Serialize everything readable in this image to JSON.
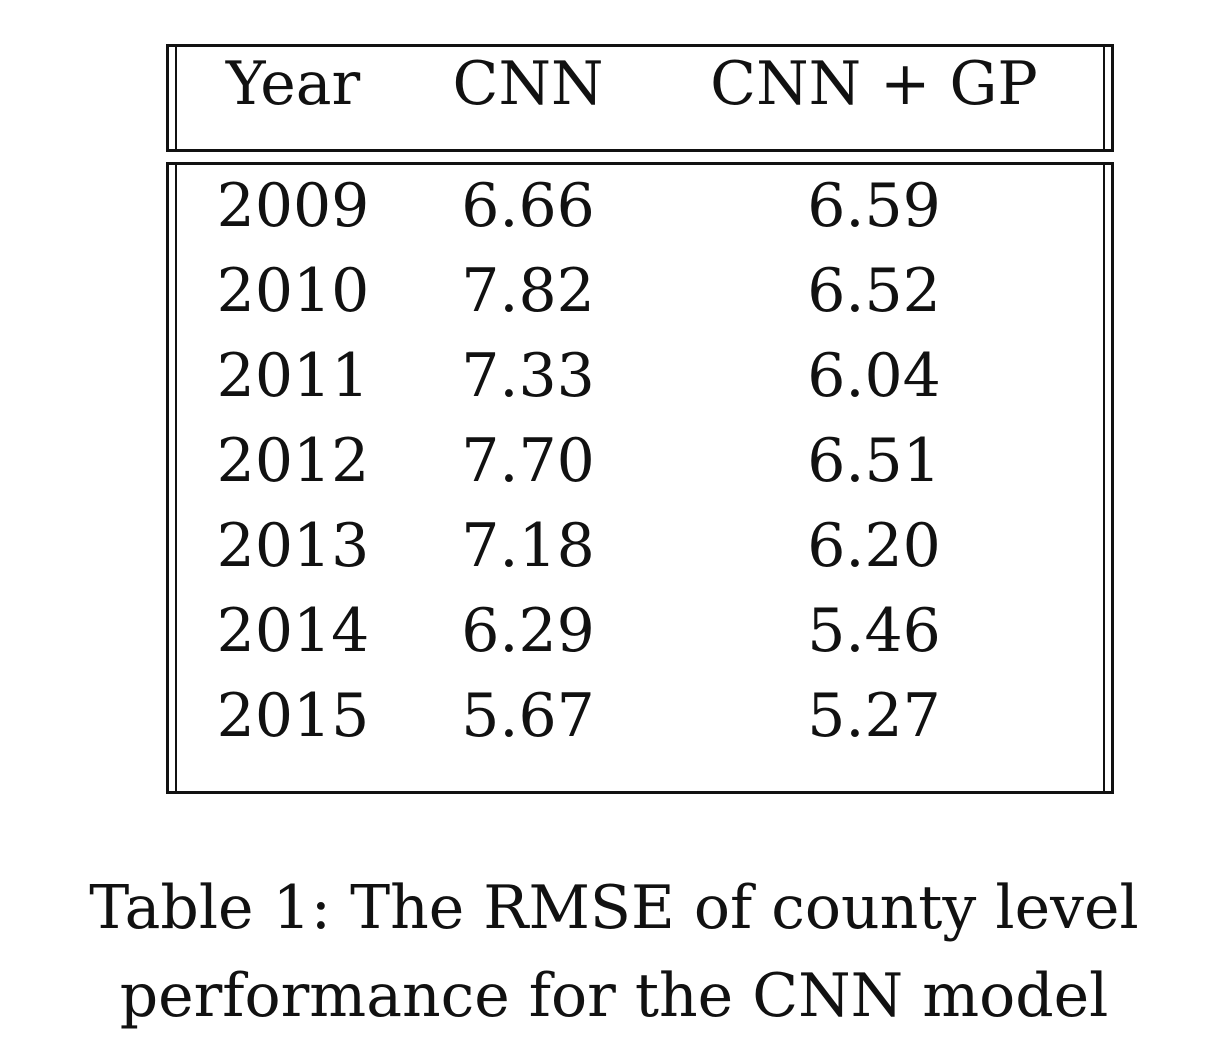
{
  "table": {
    "headers": [
      "Year",
      "CNN",
      "CNN + GP"
    ],
    "rows": [
      [
        "2009",
        "6.66",
        "6.59"
      ],
      [
        "2010",
        "7.82",
        "6.52"
      ],
      [
        "2011",
        "7.33",
        "6.04"
      ],
      [
        "2012",
        "7.70",
        "6.51"
      ],
      [
        "2013",
        "7.18",
        "6.20"
      ],
      [
        "2014",
        "6.29",
        "5.46"
      ],
      [
        "2015",
        "5.67",
        "5.27"
      ]
    ]
  },
  "caption": {
    "line1": "Table 1: The RMSE of county level",
    "line2": "performance for the CNN model"
  }
}
